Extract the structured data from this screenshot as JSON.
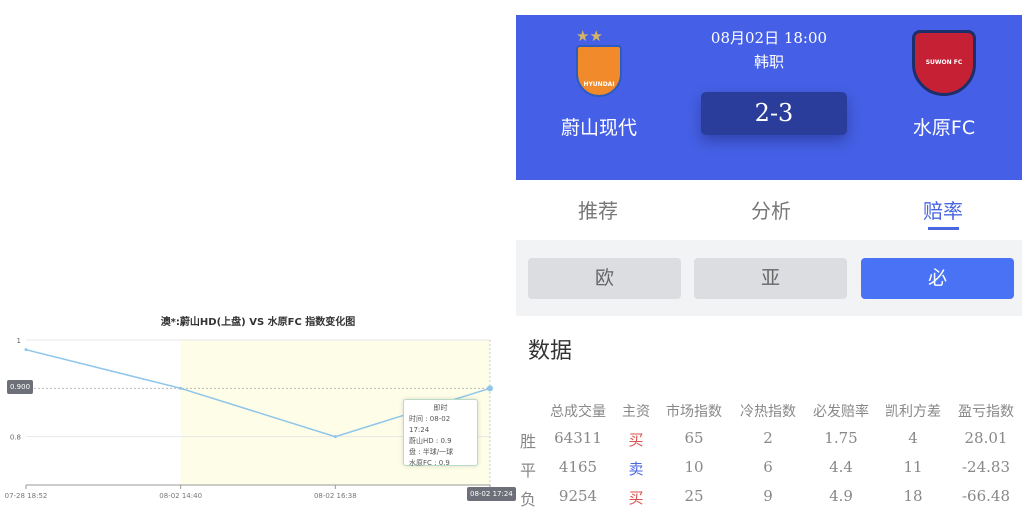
{
  "chart_data": {
    "type": "line",
    "title": "澳*:蔚山HD(上盘) VS 水原FC 指数变化图",
    "categories": [
      "07-28 18:52",
      "08-02 14:40",
      "08-02 16:38",
      "08-02 17:24"
    ],
    "series": [
      {
        "values": [
          0.98,
          0.9,
          0.8,
          0.9
        ]
      }
    ],
    "y_ticks": [
      "1",
      "0.8"
    ],
    "ylim": [
      0.7,
      1
    ],
    "grid": true,
    "line_color": "#8ec5ea",
    "highlight_band_color": "#fdfde8",
    "axis_pointer": {
      "y_label": "0.900",
      "x_label": "08-02 17:24"
    },
    "tooltip": {
      "title": "即时",
      "lines": [
        "时间 : 08-02 17:24",
        "蔚山HD : 0.9",
        "盘 : 半球/一球",
        "水原FC : 0.9"
      ]
    }
  },
  "match": {
    "datetime": "08月02日 18:00",
    "league": "韩职",
    "home": "蔚山现代",
    "away": "水原FC",
    "score": "2-3",
    "home_logo": "HYUNDAI",
    "away_logo": "SUWON FC",
    "header_color": "#4560e6"
  },
  "tabs": [
    {
      "label": "推荐"
    },
    {
      "label": "分析"
    },
    {
      "label": "赔率",
      "active": true
    }
  ],
  "subtabs": [
    {
      "label": "欧"
    },
    {
      "label": "亚"
    },
    {
      "label": "必",
      "active": true
    }
  ],
  "section_title": "数据",
  "table": {
    "headers": [
      "总成交量",
      "主资",
      "市场指数",
      "冷热指数",
      "必发赔率",
      "凯利方差",
      "盈亏指数"
    ],
    "rows": [
      {
        "label": "胜",
        "cells": [
          "64311",
          "买",
          "65",
          "2",
          "1.75",
          "4",
          "28.01"
        ],
        "flow_color": "#d9534f"
      },
      {
        "label": "平",
        "cells": [
          "4165",
          "卖",
          "10",
          "6",
          "4.4",
          "11",
          "-24.83"
        ],
        "flow_color": "#4a66e0"
      },
      {
        "label": "负",
        "cells": [
          "9254",
          "买",
          "25",
          "9",
          "4.9",
          "18",
          "-66.48"
        ],
        "flow_color": "#d9534f"
      }
    ]
  }
}
